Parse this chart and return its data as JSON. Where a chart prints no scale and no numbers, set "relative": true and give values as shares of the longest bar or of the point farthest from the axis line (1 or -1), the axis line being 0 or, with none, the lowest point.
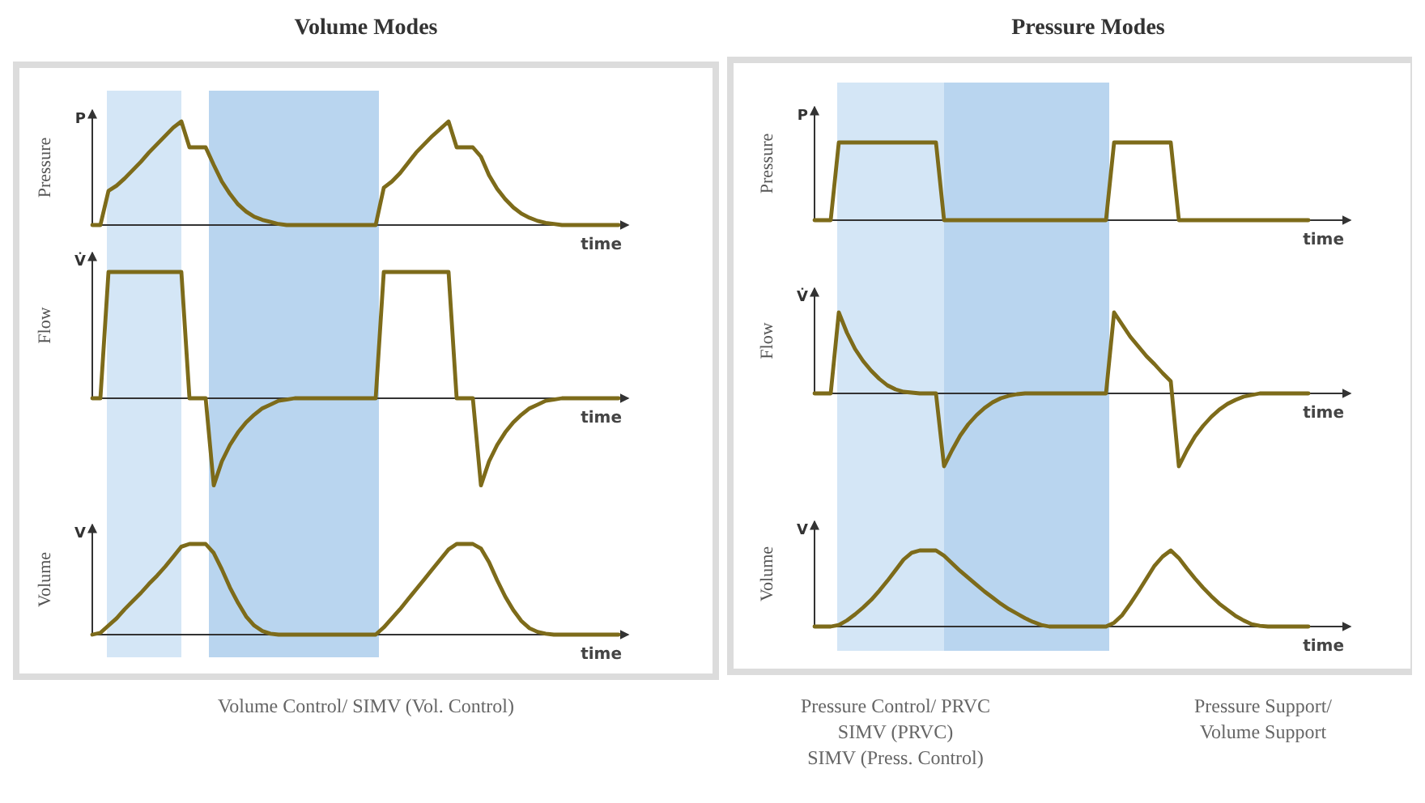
{
  "chart_data": [
    {
      "type": "line",
      "relative": true,
      "title": "Volume Modes",
      "ylabel": "Pressure",
      "xlabel": "time",
      "annotations": [
        "P"
      ],
      "categories": [
        null,
        null,
        null,
        null,
        null,
        null,
        null,
        null,
        null,
        null,
        null,
        null,
        null,
        null,
        null,
        null,
        null,
        null,
        null,
        null,
        null,
        null,
        null,
        null,
        null,
        null,
        null,
        null,
        null,
        null,
        null,
        null,
        null,
        null,
        null,
        null,
        null,
        null,
        null,
        null,
        null,
        null,
        null,
        null,
        null,
        null,
        null,
        null,
        null,
        null,
        null,
        null,
        null,
        null,
        null,
        null,
        null,
        null,
        null,
        null,
        null,
        null,
        null,
        null,
        null,
        null
      ],
      "series": [
        {
          "color": "#7d6b1a",
          "values": [
            0,
            0,
            0.33,
            0.38,
            0.45,
            0.53,
            0.61,
            0.7,
            0.78,
            0.86,
            0.94,
            1,
            0.75,
            0.75,
            0.75,
            0.58,
            0.42,
            0.3,
            0.2,
            0.13,
            0.08,
            0.05,
            0.03,
            0.01,
            0,
            0,
            0,
            0,
            0,
            0,
            0,
            0,
            0,
            0,
            0,
            0,
            0.36,
            0.42,
            0.5,
            0.6,
            0.7,
            0.78,
            0.86,
            0.93,
            1,
            0.75,
            0.75,
            0.75,
            0.66,
            0.48,
            0.35,
            0.25,
            0.17,
            0.11,
            0.07,
            0.04,
            0.02,
            0.01,
            0,
            0,
            0,
            0,
            0,
            0,
            0,
            0
          ]
        }
      ]
    },
    {
      "type": "line",
      "relative": true,
      "ylabel": "Flow",
      "xlabel": "time",
      "annotations": [
        "V̇"
      ],
      "categories": [
        null,
        null,
        null,
        null,
        null,
        null,
        null,
        null,
        null,
        null,
        null,
        null,
        null,
        null,
        null,
        null,
        null,
        null,
        null,
        null,
        null,
        null,
        null,
        null,
        null,
        null,
        null,
        null,
        null,
        null,
        null,
        null,
        null,
        null,
        null,
        null,
        null,
        null,
        null,
        null,
        null,
        null,
        null,
        null,
        null,
        null,
        null,
        null,
        null,
        null,
        null,
        null,
        null,
        null,
        null,
        null,
        null,
        null,
        null,
        null,
        null,
        null,
        null,
        null,
        null,
        null
      ],
      "series": [
        {
          "color": "#7d6b1a",
          "values": [
            0,
            0,
            1,
            1,
            1,
            1,
            1,
            1,
            1,
            1,
            1,
            1,
            0,
            0,
            0,
            -0.69,
            -0.5,
            -0.37,
            -0.27,
            -0.19,
            -0.13,
            -0.08,
            -0.05,
            -0.02,
            -0.01,
            0,
            0,
            0,
            0,
            0,
            0,
            0,
            0,
            0,
            0,
            0,
            1,
            1,
            1,
            1,
            1,
            1,
            1,
            1,
            1,
            0,
            0,
            0,
            -0.69,
            -0.5,
            -0.37,
            -0.27,
            -0.19,
            -0.13,
            -0.08,
            -0.05,
            -0.02,
            -0.01,
            0,
            0,
            0,
            0,
            0,
            0,
            0,
            0
          ]
        }
      ]
    },
    {
      "type": "line",
      "relative": true,
      "ylabel": "Volume",
      "xlabel": "time",
      "annotations": [
        "V",
        "Volume Control/ SIMV (Vol. Control)"
      ],
      "categories": [
        null,
        null,
        null,
        null,
        null,
        null,
        null,
        null,
        null,
        null,
        null,
        null,
        null,
        null,
        null,
        null,
        null,
        null,
        null,
        null,
        null,
        null,
        null,
        null,
        null,
        null,
        null,
        null,
        null,
        null,
        null,
        null,
        null,
        null,
        null,
        null,
        null,
        null,
        null,
        null,
        null,
        null,
        null,
        null,
        null,
        null,
        null,
        null,
        null,
        null,
        null,
        null,
        null,
        null,
        null,
        null,
        null,
        null,
        null,
        null,
        null,
        null,
        null,
        null,
        null,
        null
      ],
      "series": [
        {
          "color": "#7d6b1a",
          "values": [
            0,
            0.02,
            0.1,
            0.18,
            0.28,
            0.37,
            0.46,
            0.56,
            0.65,
            0.75,
            0.86,
            0.97,
            1,
            1,
            1,
            0.9,
            0.72,
            0.52,
            0.35,
            0.2,
            0.1,
            0.04,
            0.01,
            0,
            0,
            0,
            0,
            0,
            0,
            0,
            0,
            0,
            0,
            0,
            0,
            0,
            0.08,
            0.18,
            0.28,
            0.39,
            0.5,
            0.61,
            0.72,
            0.83,
            0.94,
            1,
            1,
            1,
            0.95,
            0.8,
            0.6,
            0.42,
            0.27,
            0.15,
            0.07,
            0.03,
            0.01,
            0,
            0,
            0,
            0,
            0,
            0,
            0,
            0,
            0
          ]
        }
      ]
    },
    {
      "type": "line",
      "relative": true,
      "title": "Pressure Modes",
      "ylabel": "Pressure",
      "xlabel": "time",
      "annotations": [
        "P"
      ],
      "categories": [
        null,
        null,
        null,
        null,
        null,
        null,
        null,
        null,
        null,
        null,
        null,
        null,
        null,
        null,
        null,
        null,
        null,
        null,
        null,
        null,
        null,
        null,
        null,
        null,
        null,
        null,
        null,
        null,
        null,
        null,
        null,
        null,
        null,
        null,
        null,
        null,
        null,
        null,
        null,
        null,
        null,
        null,
        null,
        null,
        null,
        null,
        null,
        null,
        null,
        null,
        null,
        null,
        null,
        null,
        null,
        null,
        null,
        null,
        null,
        null,
        null,
        null,
        null,
        null,
        null,
        null
      ],
      "series": [
        {
          "color": "#7d6b1a",
          "values": [
            0,
            0,
            0,
            1,
            1,
            1,
            1,
            1,
            1,
            1,
            1,
            1,
            1,
            1,
            1,
            1,
            0,
            0,
            0,
            0,
            0,
            0,
            0,
            0,
            0,
            0,
            0,
            0,
            0,
            0,
            0,
            0,
            0,
            0,
            0,
            0,
            0,
            1,
            1,
            1,
            1,
            1,
            1,
            1,
            1,
            0,
            0,
            0,
            0,
            0,
            0,
            0,
            0,
            0,
            0,
            0,
            0,
            0,
            0,
            0,
            0,
            0,
            null,
            null,
            null,
            null
          ]
        }
      ]
    },
    {
      "type": "line",
      "relative": true,
      "ylabel": "Flow",
      "xlabel": "time",
      "annotations": [
        "V̇"
      ],
      "categories": [
        null,
        null,
        null,
        null,
        null,
        null,
        null,
        null,
        null,
        null,
        null,
        null,
        null,
        null,
        null,
        null,
        null,
        null,
        null,
        null,
        null,
        null,
        null,
        null,
        null,
        null,
        null,
        null,
        null,
        null,
        null,
        null,
        null,
        null,
        null,
        null,
        null,
        null,
        null,
        null,
        null,
        null,
        null,
        null,
        null,
        null,
        null,
        null,
        null,
        null,
        null,
        null,
        null,
        null,
        null,
        null,
        null,
        null,
        null,
        null,
        null,
        null,
        null,
        null,
        null,
        null
      ],
      "series": [
        {
          "color": "#7d6b1a",
          "values": [
            0,
            0,
            0,
            1,
            0.75,
            0.55,
            0.4,
            0.28,
            0.18,
            0.1,
            0.05,
            0.02,
            0.01,
            0,
            0,
            0,
            -0.9,
            -0.7,
            -0.52,
            -0.38,
            -0.27,
            -0.18,
            -0.11,
            -0.06,
            -0.03,
            -0.01,
            0,
            0,
            0,
            0,
            0,
            0,
            0,
            0,
            0,
            0,
            0,
            1,
            0.85,
            0.7,
            0.58,
            0.46,
            0.36,
            0.25,
            0.15,
            -0.9,
            -0.7,
            -0.53,
            -0.4,
            -0.29,
            -0.2,
            -0.13,
            -0.08,
            -0.04,
            -0.02,
            0,
            0,
            0,
            0,
            0,
            0,
            0,
            null,
            null,
            null,
            null
          ]
        }
      ]
    },
    {
      "type": "line",
      "relative": true,
      "ylabel": "Volume",
      "xlabel": "time",
      "annotations": [
        "V",
        "Pressure Control/ PRVC\nSIMV (PRVC)\nSIMV (Press. Control)",
        "Pressure Support/\nVolume Support"
      ],
      "categories": [
        null,
        null,
        null,
        null,
        null,
        null,
        null,
        null,
        null,
        null,
        null,
        null,
        null,
        null,
        null,
        null,
        null,
        null,
        null,
        null,
        null,
        null,
        null,
        null,
        null,
        null,
        null,
        null,
        null,
        null,
        null,
        null,
        null,
        null,
        null,
        null,
        null,
        null,
        null,
        null,
        null,
        null,
        null,
        null,
        null,
        null,
        null,
        null,
        null,
        null,
        null,
        null,
        null,
        null,
        null,
        null,
        null,
        null,
        null,
        null,
        null,
        null,
        null,
        null,
        null,
        null
      ],
      "series": [
        {
          "color": "#7d6b1a",
          "values": [
            0,
            0,
            0,
            0.02,
            0.08,
            0.16,
            0.25,
            0.35,
            0.47,
            0.6,
            0.74,
            0.88,
            0.97,
            1,
            1,
            1,
            0.93,
            0.83,
            0.73,
            0.64,
            0.55,
            0.46,
            0.38,
            0.3,
            0.23,
            0.17,
            0.11,
            0.06,
            0.02,
            0,
            0,
            0,
            0,
            0,
            0,
            0,
            0,
            0.05,
            0.15,
            0.3,
            0.46,
            0.63,
            0.8,
            0.92,
            1,
            0.9,
            0.76,
            0.63,
            0.51,
            0.4,
            0.3,
            0.22,
            0.14,
            0.08,
            0.03,
            0.01,
            0,
            0,
            0,
            0,
            0,
            0,
            null,
            null,
            null,
            null
          ]
        }
      ]
    }
  ]
}
